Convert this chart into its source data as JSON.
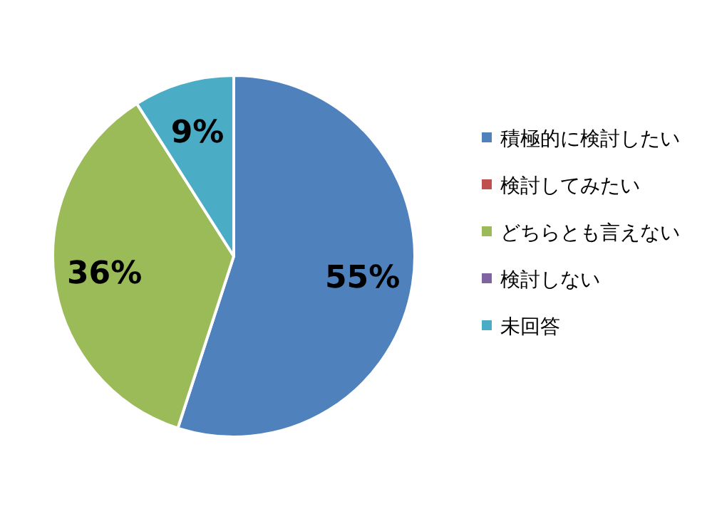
{
  "chart_data": {
    "type": "pie",
    "categories": [
      "積極的に検討したい",
      "検討してみたい",
      "どちらとも言えない",
      "検討しない",
      "未回答"
    ],
    "values": [
      55,
      0,
      36,
      0,
      9
    ],
    "colors": [
      "#4f81bd",
      "#c0504d",
      "#9bbb59",
      "#8064a2",
      "#4bacc6"
    ],
    "value_labels": [
      "55%",
      null,
      "36%",
      null,
      "9%"
    ],
    "legend": "right"
  }
}
